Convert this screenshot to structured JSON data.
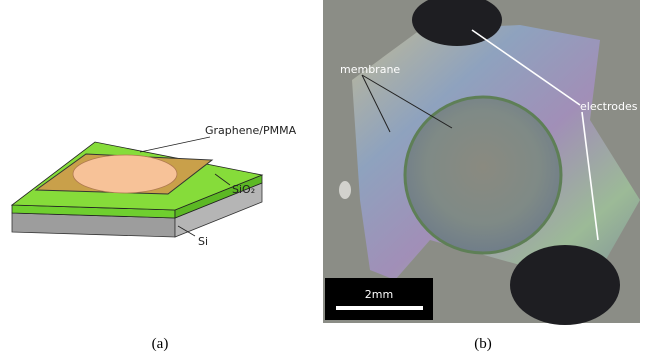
{
  "panels": [
    {
      "label": "(a)",
      "annotations": {
        "top": "Graphene/PMMA",
        "middle": "SiO₂",
        "bottom": "Si"
      }
    },
    {
      "label": "(b)",
      "annotations": {
        "left": "membrane",
        "right": "electrodes"
      },
      "scale_bar": "2mm"
    }
  ]
}
